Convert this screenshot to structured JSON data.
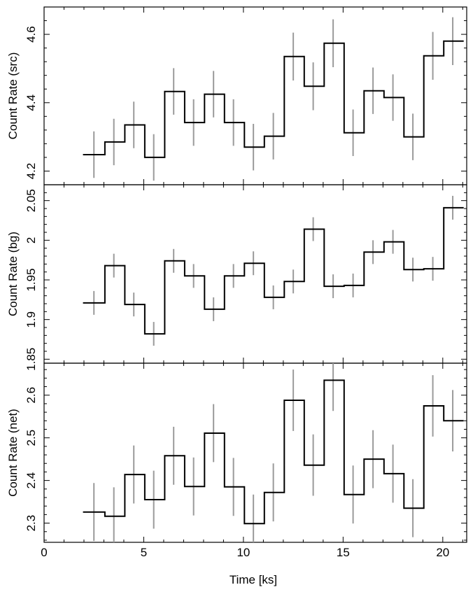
{
  "chart_data": {
    "type": "line",
    "xlabel": "Time [ks]",
    "xlim": [
      0,
      21.2
    ],
    "xticks": [
      0,
      5,
      10,
      15,
      20
    ],
    "x": [
      2.5,
      3.5,
      4.5,
      5.5,
      6.5,
      7.5,
      8.5,
      9.5,
      10.5,
      11.5,
      12.5,
      13.5,
      14.5,
      15.5,
      16.5,
      17.5,
      18.5,
      19.5,
      20.5
    ],
    "bin_width": 1.1,
    "panels": [
      {
        "ylabel": "Count Rate (src)",
        "ylim": [
          4.16,
          4.68
        ],
        "yticks": [
          4.2,
          4.4,
          4.6
        ],
        "ytick_labels": [
          "4.2",
          "4.4",
          "4.6"
        ],
        "series": [
          {
            "values": [
              4.248,
              4.285,
              4.335,
              4.24,
              4.433,
              4.342,
              4.425,
              4.342,
              4.27,
              4.302,
              4.535,
              4.448,
              4.574,
              4.312,
              4.435,
              4.415,
              4.3,
              4.537,
              4.58
            ],
            "errors": [
              0.068,
              0.068,
              0.068,
              0.068,
              0.068,
              0.068,
              0.068,
              0.068,
              0.068,
              0.068,
              0.07,
              0.07,
              0.07,
              0.068,
              0.068,
              0.068,
              0.068,
              0.07,
              0.07
            ]
          }
        ]
      },
      {
        "ylabel": "Count Rate (bg)",
        "ylim": [
          1.845,
          2.07
        ],
        "yticks": [
          1.85,
          1.9,
          1.95,
          2.0,
          2.05
        ],
        "ytick_labels": [
          "1.85",
          "1.9",
          "1.95",
          "2",
          "2.05"
        ],
        "series": [
          {
            "values": [
              1.921,
              1.968,
              1.919,
              1.882,
              1.974,
              1.955,
              1.913,
              1.955,
              1.971,
              1.928,
              1.948,
              2.014,
              1.942,
              1.943,
              1.985,
              1.998,
              1.963,
              1.964,
              2.041
            ],
            "errors": [
              0.015,
              0.015,
              0.015,
              0.015,
              0.015,
              0.015,
              0.015,
              0.015,
              0.015,
              0.015,
              0.015,
              0.015,
              0.015,
              0.015,
              0.015,
              0.015,
              0.015,
              0.015,
              0.015
            ]
          }
        ]
      },
      {
        "ylabel": "Count Rate (net)",
        "ylim": [
          2.255,
          2.675
        ],
        "yticks": [
          2.3,
          2.4,
          2.5,
          2.6
        ],
        "ytick_labels": [
          "2.3",
          "2.4",
          "2.5",
          "2.6"
        ],
        "series": [
          {
            "values": [
              2.326,
              2.316,
              2.414,
              2.355,
              2.458,
              2.386,
              2.511,
              2.385,
              2.299,
              2.372,
              2.588,
              2.436,
              2.635,
              2.367,
              2.45,
              2.416,
              2.335,
              2.575,
              2.54
            ],
            "errors": [
              0.068,
              0.068,
              0.068,
              0.068,
              0.068,
              0.068,
              0.068,
              0.068,
              0.068,
              0.068,
              0.072,
              0.072,
              0.072,
              0.068,
              0.068,
              0.068,
              0.068,
              0.072,
              0.072
            ]
          }
        ]
      }
    ]
  }
}
